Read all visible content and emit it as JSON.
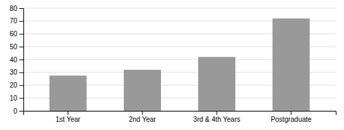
{
  "chart_data": {
    "type": "bar",
    "categories": [
      "1st Year",
      "2nd Year",
      "3rd & 4th Years",
      "Postgraduate"
    ],
    "values": [
      27.5,
      32,
      42,
      72
    ],
    "color": "#999999",
    "ylim": [
      0,
      80
    ],
    "yticks": [
      0,
      10,
      20,
      30,
      40,
      50,
      60,
      70,
      80
    ],
    "grid": true
  }
}
